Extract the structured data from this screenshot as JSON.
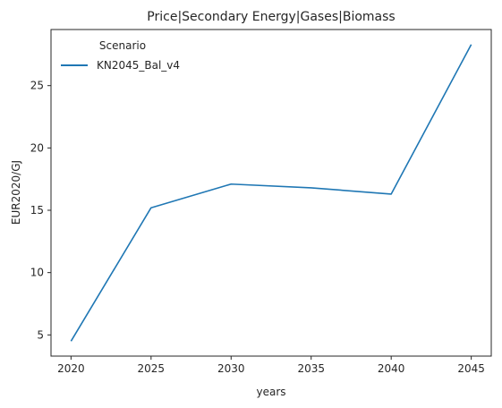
{
  "chart_data": {
    "type": "line",
    "title": "Price|Secondary Energy|Gases|Biomass",
    "xlabel": "years",
    "ylabel": "EUR2020/GJ",
    "x": [
      2020,
      2025,
      2030,
      2035,
      2040,
      2045
    ],
    "series": [
      {
        "name": "KN2045_Bal_v4",
        "values": [
          4.5,
          15.2,
          17.1,
          16.8,
          16.3,
          28.3
        ],
        "color": "#1f77b4"
      }
    ],
    "xticks": [
      "2020",
      "2025",
      "2030",
      "2035",
      "2040",
      "2045"
    ],
    "yticks": [
      "5",
      "10",
      "15",
      "20",
      "25"
    ],
    "xlim": [
      2018.75,
      2046.25
    ],
    "ylim": [
      3.3,
      29.5
    ],
    "legend": {
      "title": "Scenario",
      "placement": "top-left"
    },
    "grid": false
  }
}
